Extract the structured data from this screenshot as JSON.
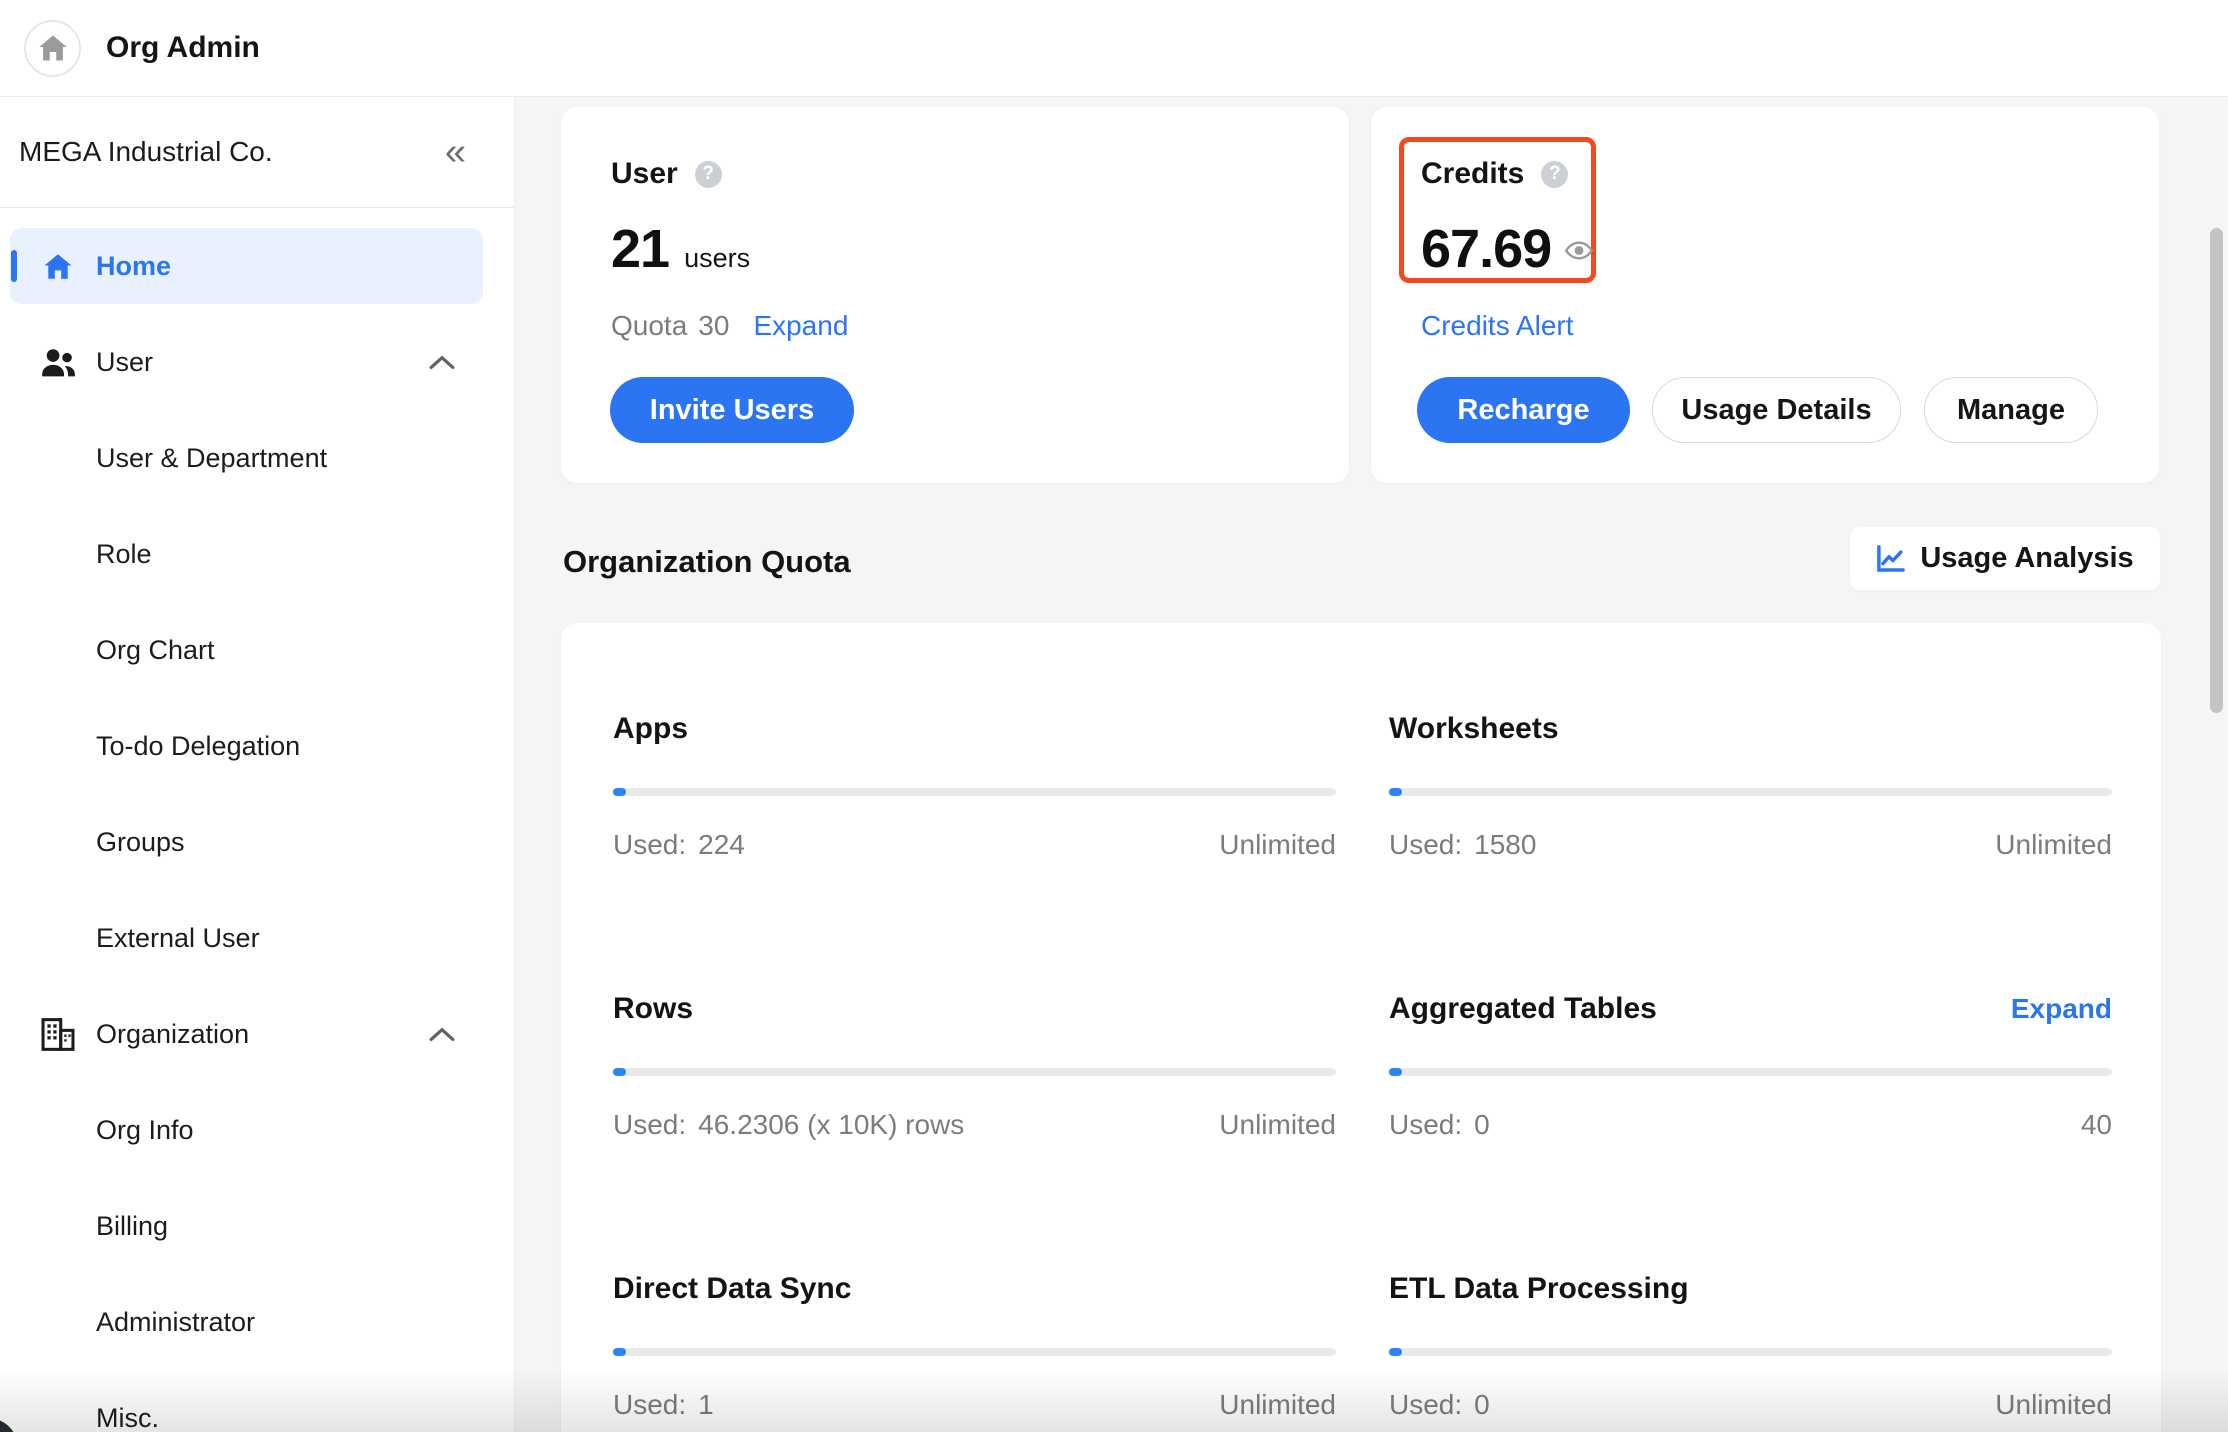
{
  "topbar": {
    "title": "Org Admin"
  },
  "icons": {
    "help": "?",
    "collapse": "«"
  },
  "colors": {
    "accent_blue": "#2b74f2",
    "highlight_red": "#f4481f",
    "active_item_bg": "#e9f1fe",
    "muted_text": "#7c7c7c",
    "progress_track": "#e9e9eb"
  },
  "sidebar": {
    "org_name": "MEGA Industrial Co.",
    "items": [
      {
        "label": "Home",
        "icon": "home",
        "type": "parent",
        "active": true,
        "expandable": false
      },
      {
        "label": "User",
        "icon": "users",
        "type": "parent",
        "active": false,
        "expandable": true
      },
      {
        "label": "User & Department",
        "type": "sub"
      },
      {
        "label": "Role",
        "type": "sub"
      },
      {
        "label": "Org Chart",
        "type": "sub"
      },
      {
        "label": "To-do Delegation",
        "type": "sub"
      },
      {
        "label": "Groups",
        "type": "sub"
      },
      {
        "label": "External User",
        "type": "sub"
      },
      {
        "label": "Organization",
        "icon": "building",
        "type": "parent",
        "active": false,
        "expandable": true
      },
      {
        "label": "Org Info",
        "type": "sub"
      },
      {
        "label": "Billing",
        "type": "sub"
      },
      {
        "label": "Administrator",
        "type": "sub"
      },
      {
        "label": "Misc.",
        "type": "sub"
      }
    ]
  },
  "user_card": {
    "title": "User",
    "count": "21",
    "count_unit": "users",
    "quota_label": "Quota",
    "quota_value": "30",
    "expand_label": "Expand",
    "invite_button": "Invite Users"
  },
  "credits_card": {
    "title": "Credits",
    "value": "67.69",
    "alert_link": "Credits Alert",
    "recharge_button": "Recharge",
    "usage_details_button": "Usage Details",
    "manage_button": "Manage"
  },
  "quota_section": {
    "title": "Organization Quota",
    "usage_analysis_button": "Usage Analysis",
    "items": [
      {
        "name": "Apps",
        "used_label": "Used:",
        "used": "224",
        "limit": "Unlimited"
      },
      {
        "name": "Worksheets",
        "used_label": "Used:",
        "used": "1580",
        "limit": "Unlimited"
      },
      {
        "name": "Rows",
        "used_label": "Used:",
        "used": "46.2306 (x 10K) rows",
        "limit": "Unlimited"
      },
      {
        "name": "Aggregated Tables",
        "expand_label": "Expand",
        "used_label": "Used:",
        "used": "0",
        "limit": "40"
      },
      {
        "name": "Direct Data Sync",
        "used_label": "Used:",
        "used": "1",
        "limit": "Unlimited"
      },
      {
        "name": "ETL Data Processing",
        "used_label": "Used:",
        "used": "0",
        "limit": "Unlimited"
      }
    ]
  }
}
